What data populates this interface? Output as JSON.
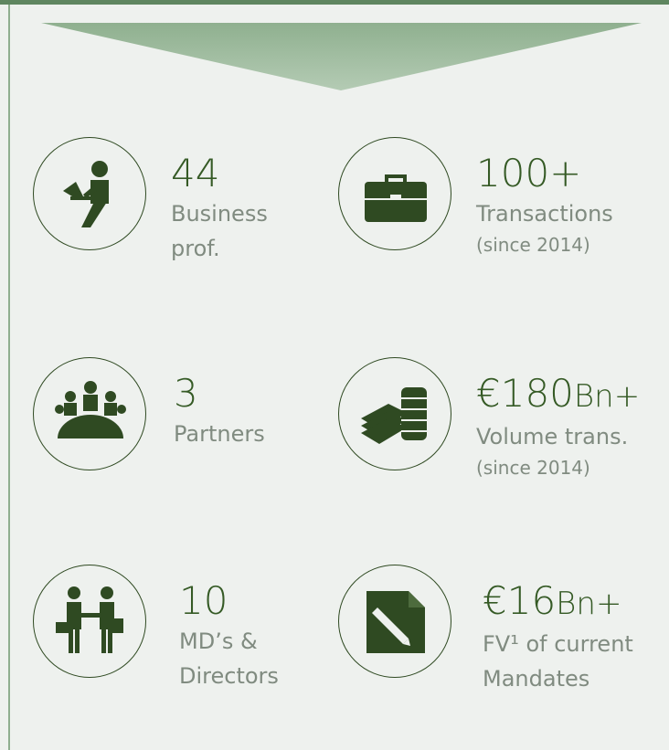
{
  "items": [
    {
      "value": "44",
      "label": [
        "Business",
        "prof."
      ]
    },
    {
      "value": "100+",
      "label": [
        "Transactions"
      ],
      "note": "(since 2014)"
    },
    {
      "value": "3",
      "label": [
        "Partners"
      ]
    },
    {
      "value": "€180",
      "unit": "Bn+",
      "label": [
        "Volume trans."
      ],
      "note": "(since 2014)"
    },
    {
      "value": "10",
      "label": [
        "MD’s &",
        "Directors"
      ]
    },
    {
      "value": "€16",
      "unit": "Bn+",
      "label": [
        "FV¹ of current",
        "Mandates"
      ]
    }
  ]
}
